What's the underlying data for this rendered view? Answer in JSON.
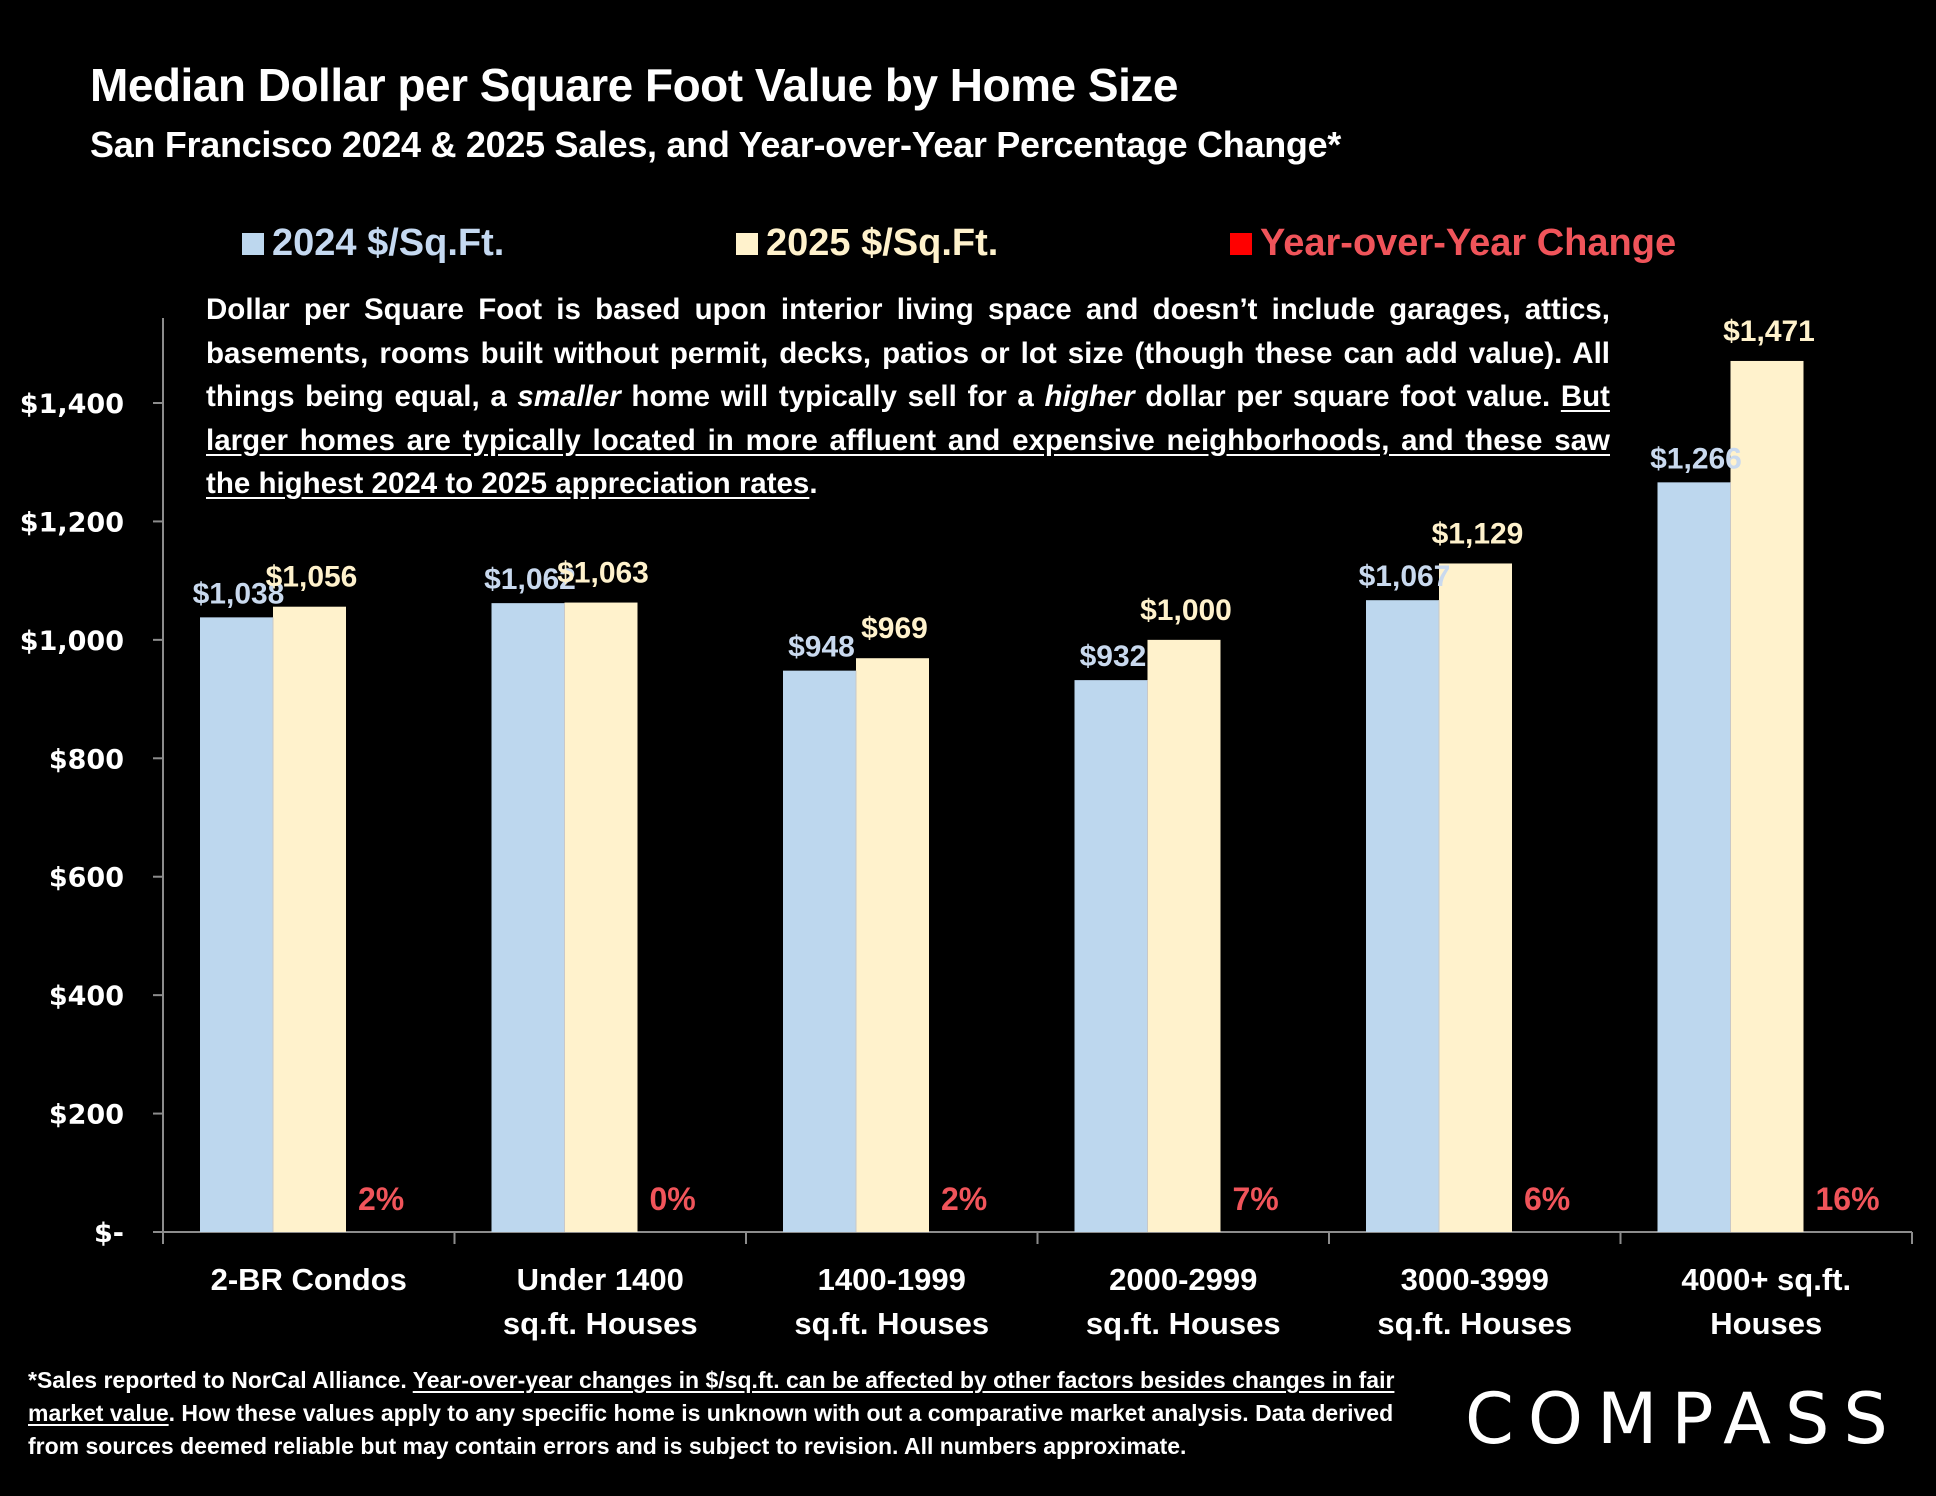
{
  "header": {
    "title": "Median Dollar per Square Foot Value by Home Size",
    "subtitle": "San Francisco 2024 & 2025 Sales, and Year-over-Year Percentage Change*"
  },
  "note": {
    "part1": "Dollar per Square Foot is based upon interior living space and doesn’t include garages, attics, basements, rooms built without permit, decks, patios or lot size (though these can add value). All things being equal, a ",
    "em1": "smaller",
    "part2": " home will typically sell for a ",
    "em2": "higher",
    "part3": " dollar per square foot value. ",
    "underlined": "But larger homes are typically located in more affluent and expensive neighborhoods, and these saw the highest 2024 to 2025 appreciation rates",
    "part4": "."
  },
  "footer": {
    "part1": "*Sales reported to NorCal Alliance. ",
    "underlined": "Year-over-year changes in $/sq.ft. can be affected by other factors besides changes in fair market value",
    "part2": ". How these values apply to any specific home is unknown with out a comparative market analysis. Data derived from sources deemed reliable but may contain errors and is subject to revision. All numbers  approximate."
  },
  "logo": {
    "text": "COMPASS"
  },
  "colors": {
    "series_2024": "#bdd7ee",
    "series_2025": "#fff2cc",
    "yoy": "#ff0000",
    "yoy_text": "#f0545a",
    "label_2024": "#c9d9ee",
    "label_2025": "#fff2cc",
    "legend_2024_text": "#c5d9f1",
    "legend_2025_text": "#fff2cc",
    "legend_yoy_text": "#f0545a"
  },
  "chart_data": {
    "type": "bar",
    "title": "Median Dollar per Square Foot Value by Home Size",
    "subtitle": "San Francisco 2024 & 2025 Sales, and Year-over-Year Percentage Change*",
    "xlabel": "",
    "ylabel": "",
    "categories": [
      [
        "2-BR Condos"
      ],
      [
        "Under 1400",
        "sq.ft. Houses"
      ],
      [
        "1400-1999",
        "sq.ft. Houses"
      ],
      [
        "2000-2999",
        "sq.ft. Houses"
      ],
      [
        "3000-3999",
        "sq.ft. Houses"
      ],
      [
        "4000+ sq.ft.",
        "Houses"
      ]
    ],
    "series": [
      {
        "name": "2024 $/Sq.Ft.",
        "values": [
          1038,
          1062,
          948,
          932,
          1067,
          1266
        ],
        "labels": [
          "$1,038",
          "$1,062",
          "$948",
          "$932",
          "$1,067",
          "$1,266"
        ]
      },
      {
        "name": "2025 $/Sq.Ft.",
        "values": [
          1056,
          1063,
          969,
          1000,
          1129,
          1471
        ],
        "labels": [
          "$1,056",
          "$1,063",
          "$969",
          "$1,000",
          "$1,129",
          "$1,471"
        ]
      },
      {
        "name": "Year-over-Year Change",
        "values": [
          2,
          0,
          2,
          7,
          6,
          16
        ],
        "labels": [
          "2%",
          "0%",
          "2%",
          "7%",
          "6%",
          "16%"
        ]
      }
    ],
    "ylim": [
      0,
      1500
    ],
    "yticks": [
      0,
      200,
      400,
      600,
      800,
      1000,
      1200,
      1400
    ],
    "ytick_labels": [
      "$-",
      "$200",
      "$400",
      "$600",
      "$800",
      "$1,000",
      "$1,200",
      "$1,400"
    ],
    "grid": false,
    "legend": {
      "placement": "top",
      "entries": [
        "2024 $/Sq.Ft.",
        "2025 $/Sq.Ft.",
        "Year-over-Year Change"
      ]
    }
  }
}
